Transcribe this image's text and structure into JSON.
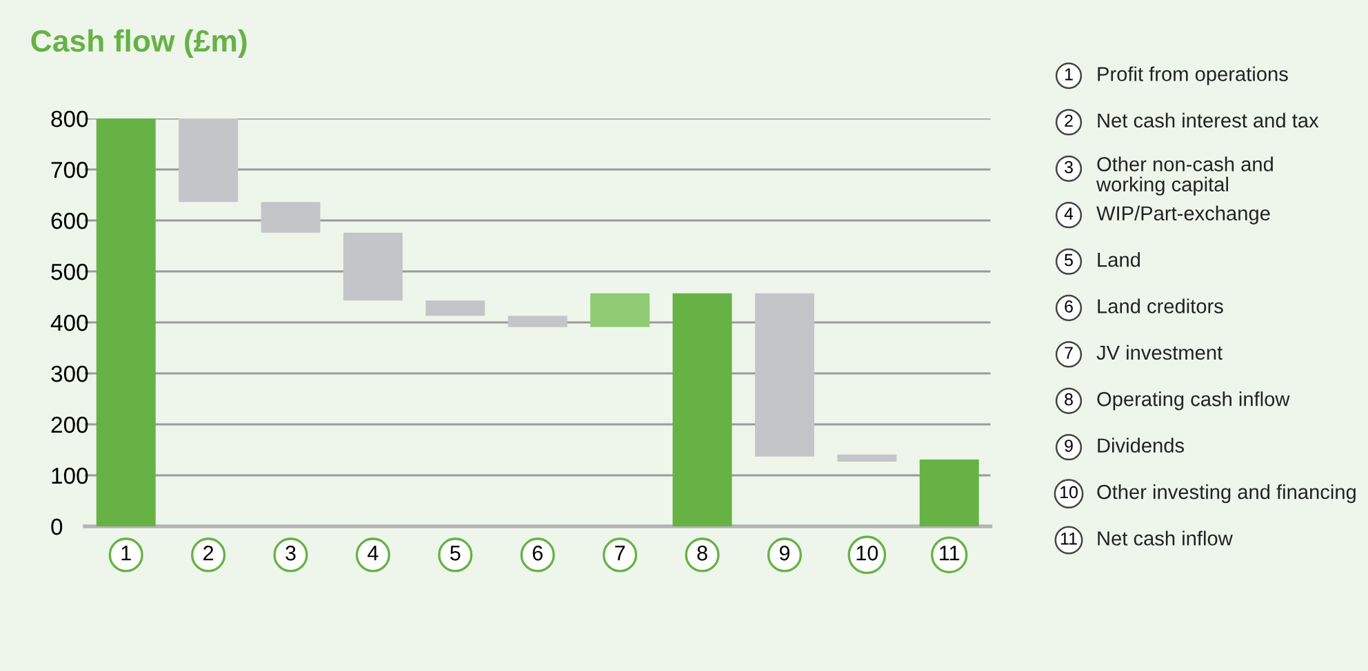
{
  "chart_data": {
    "type": "bar",
    "title": "Cash flow (£m)",
    "categories": [
      "1",
      "2",
      "3",
      "4",
      "5",
      "6",
      "7",
      "8",
      "9",
      "10",
      "11"
    ],
    "values": [
      800,
      -164,
      -60,
      -133,
      -30,
      -22,
      66,
      457,
      -320,
      -14,
      131
    ],
    "base": [
      0,
      800,
      636,
      576,
      443,
      413,
      391,
      0,
      457,
      141,
      0
    ],
    "colors": [
      "#66b245",
      "#c4c5c8",
      "#c4c5c8",
      "#c4c5c8",
      "#c4c5c8",
      "#c4c5c8",
      "#8fcc73",
      "#66b245",
      "#c4c5c8",
      "#c4c5c8",
      "#66b245"
    ],
    "ylim": [
      0,
      800
    ],
    "yticks": [
      0,
      100,
      200,
      300,
      400,
      500,
      600,
      700,
      800
    ],
    "grid": "y",
    "annotations": [
      "Profit from operations",
      "Net cash interest and tax",
      "Other non-cash and\nworking capital",
      "WIP/Part-exchange",
      "Land",
      "Land creditors",
      "JV investment",
      "Operating cash inflow",
      "Dividends",
      "Other investing and financing",
      "Net cash inflow"
    ]
  }
}
